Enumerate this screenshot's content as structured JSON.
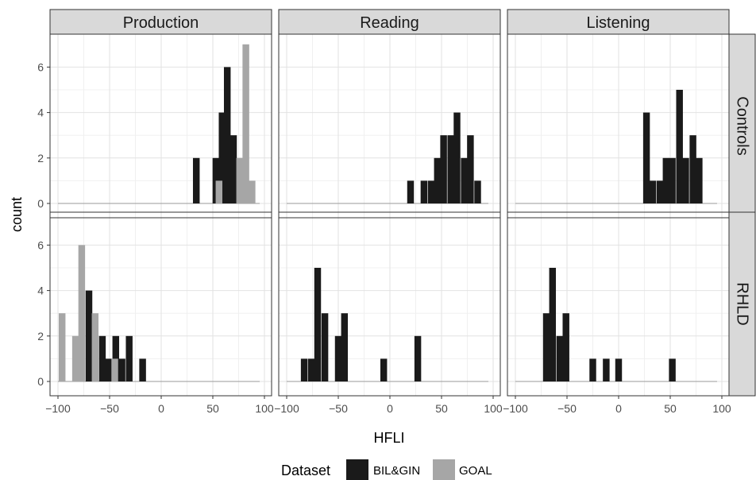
{
  "chart_data": {
    "type": "bar",
    "subtype": "faceted-histogram",
    "xlabel": "HFLI",
    "ylabel": "count",
    "xlim": [
      -100,
      100
    ],
    "ylim": [
      0,
      7
    ],
    "x_ticks": [
      -100,
      -50,
      0,
      50,
      100
    ],
    "x_tick_labels": [
      "−100",
      "−50",
      "0",
      "50",
      "100"
    ],
    "y_ticks": [
      0,
      2,
      4,
      6
    ],
    "y_tick_labels": [
      "0",
      "2",
      "4",
      "6"
    ],
    "bin_width": 6.5,
    "grid": true,
    "column_facets": [
      "Production",
      "Reading",
      "Listening"
    ],
    "row_facets": [
      "Controls",
      "RHLD"
    ],
    "legend": {
      "title": "Dataset",
      "position": "bottom",
      "items": [
        {
          "label": "BIL&GIN",
          "color": "#1a1a1a"
        },
        {
          "label": "GOAL",
          "color": "#a6a6a6"
        }
      ]
    },
    "series": [
      {
        "name": "BIL&GIN",
        "color": "#1a1a1a"
      },
      {
        "name": "GOAL",
        "color": "#a6a6a6"
      }
    ],
    "panels": [
      {
        "row": "Controls",
        "col": "Production",
        "bars": [
          {
            "dataset": "BIL&GIN",
            "x": 34,
            "count": 2
          },
          {
            "dataset": "BIL&GIN",
            "x": 53,
            "count": 2
          },
          {
            "dataset": "BIL&GIN",
            "x": 59,
            "count": 4
          },
          {
            "dataset": "BIL&GIN",
            "x": 64,
            "count": 6
          },
          {
            "dataset": "BIL&GIN",
            "x": 70,
            "count": 3
          },
          {
            "dataset": "GOAL",
            "x": 56,
            "count": 1
          },
          {
            "dataset": "GOAL",
            "x": 76,
            "count": 2
          },
          {
            "dataset": "GOAL",
            "x": 82,
            "count": 7
          },
          {
            "dataset": "GOAL",
            "x": 88,
            "count": 1
          }
        ]
      },
      {
        "row": "Controls",
        "col": "Reading",
        "bars": [
          {
            "dataset": "BIL&GIN",
            "x": 20,
            "count": 1
          },
          {
            "dataset": "BIL&GIN",
            "x": 33,
            "count": 1
          },
          {
            "dataset": "BIL&GIN",
            "x": 40,
            "count": 1
          },
          {
            "dataset": "BIL&GIN",
            "x": 46,
            "count": 2
          },
          {
            "dataset": "BIL&GIN",
            "x": 52,
            "count": 3
          },
          {
            "dataset": "BIL&GIN",
            "x": 59,
            "count": 3
          },
          {
            "dataset": "BIL&GIN",
            "x": 65,
            "count": 4
          },
          {
            "dataset": "BIL&GIN",
            "x": 72,
            "count": 2
          },
          {
            "dataset": "BIL&GIN",
            "x": 78,
            "count": 3
          },
          {
            "dataset": "BIL&GIN",
            "x": 85,
            "count": 1
          }
        ]
      },
      {
        "row": "Controls",
        "col": "Listening",
        "bars": [
          {
            "dataset": "BIL&GIN",
            "x": 27,
            "count": 4
          },
          {
            "dataset": "BIL&GIN",
            "x": 33,
            "count": 1
          },
          {
            "dataset": "BIL&GIN",
            "x": 40,
            "count": 1
          },
          {
            "dataset": "BIL&GIN",
            "x": 46,
            "count": 2
          },
          {
            "dataset": "BIL&GIN",
            "x": 52,
            "count": 2
          },
          {
            "dataset": "BIL&GIN",
            "x": 59,
            "count": 5
          },
          {
            "dataset": "BIL&GIN",
            "x": 65,
            "count": 2
          },
          {
            "dataset": "BIL&GIN",
            "x": 72,
            "count": 3
          },
          {
            "dataset": "BIL&GIN",
            "x": 78,
            "count": 2
          }
        ]
      },
      {
        "row": "RHLD",
        "col": "Production",
        "bars": [
          {
            "dataset": "GOAL",
            "x": -96,
            "count": 3
          },
          {
            "dataset": "GOAL",
            "x": -83,
            "count": 2
          },
          {
            "dataset": "GOAL",
            "x": -77,
            "count": 6
          },
          {
            "dataset": "GOAL",
            "x": -64,
            "count": 3
          },
          {
            "dataset": "GOAL",
            "x": -45,
            "count": 1
          },
          {
            "dataset": "BIL&GIN",
            "x": -70,
            "count": 4
          },
          {
            "dataset": "BIL&GIN",
            "x": -57,
            "count": 2
          },
          {
            "dataset": "BIL&GIN",
            "x": -51,
            "count": 1
          },
          {
            "dataset": "BIL&GIN",
            "x": -44,
            "count": 2
          },
          {
            "dataset": "BIL&GIN",
            "x": -38,
            "count": 1
          },
          {
            "dataset": "BIL&GIN",
            "x": -31,
            "count": 2
          },
          {
            "dataset": "BIL&GIN",
            "x": -18,
            "count": 1
          }
        ]
      },
      {
        "row": "RHLD",
        "col": "Reading",
        "bars": [
          {
            "dataset": "BIL&GIN",
            "x": -83,
            "count": 1
          },
          {
            "dataset": "BIL&GIN",
            "x": -76,
            "count": 1
          },
          {
            "dataset": "BIL&GIN",
            "x": -70,
            "count": 5
          },
          {
            "dataset": "BIL&GIN",
            "x": -63,
            "count": 3
          },
          {
            "dataset": "BIL&GIN",
            "x": -50,
            "count": 2
          },
          {
            "dataset": "BIL&GIN",
            "x": -44,
            "count": 3
          },
          {
            "dataset": "BIL&GIN",
            "x": -6,
            "count": 1
          },
          {
            "dataset": "BIL&GIN",
            "x": 27,
            "count": 2
          }
        ]
      },
      {
        "row": "RHLD",
        "col": "Listening",
        "bars": [
          {
            "dataset": "BIL&GIN",
            "x": -70,
            "count": 3
          },
          {
            "dataset": "BIL&GIN",
            "x": -64,
            "count": 5
          },
          {
            "dataset": "BIL&GIN",
            "x": -57,
            "count": 2
          },
          {
            "dataset": "BIL&GIN",
            "x": -51,
            "count": 3
          },
          {
            "dataset": "BIL&GIN",
            "x": -25,
            "count": 1
          },
          {
            "dataset": "BIL&GIN",
            "x": -12,
            "count": 1
          },
          {
            "dataset": "BIL&GIN",
            "x": 0,
            "count": 1
          },
          {
            "dataset": "BIL&GIN",
            "x": 52,
            "count": 1
          }
        ]
      }
    ]
  }
}
